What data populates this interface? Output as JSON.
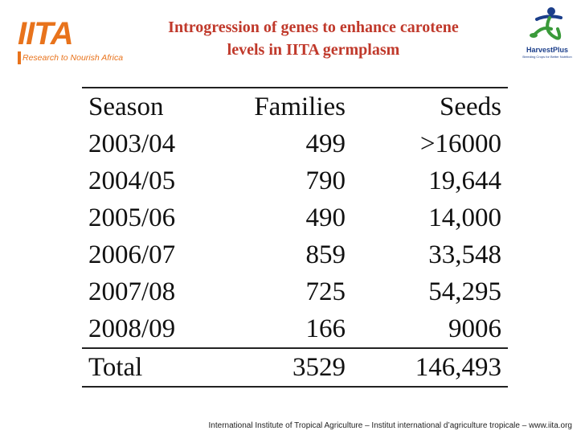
{
  "header": {
    "left_logo": {
      "mark": "IITA",
      "tagline": "Research to Nourish Africa"
    },
    "title_line1": "Introgression of genes to enhance carotene",
    "title_line2": "levels in IITA germplasm",
    "right_logo": {
      "name": "HarvestPlus",
      "tagline": "Breeding Crops for Better Nutrition"
    }
  },
  "table": {
    "headers": [
      "Season",
      "Families",
      "Seeds"
    ],
    "rows": [
      [
        "2003/04",
        "499",
        ">16000"
      ],
      [
        "2004/05",
        "790",
        "19,644"
      ],
      [
        "2005/06",
        "490",
        "14,000"
      ],
      [
        "2006/07",
        "859",
        "33,548"
      ],
      [
        "2007/08",
        "725",
        "54,295"
      ],
      [
        "2008/09",
        "166",
        "9006"
      ]
    ],
    "total": [
      "Total",
      "3529",
      "146,493"
    ]
  },
  "footer": {
    "text": "International Institute of Tropical Agriculture – Institut international d’agriculture tropicale – www.iita.org"
  },
  "colors": {
    "title": "#c0392b",
    "iita_orange": "#e8731c",
    "harvestplus_blue": "#1b3e8a",
    "harvestplus_green": "#3a9a3a"
  }
}
